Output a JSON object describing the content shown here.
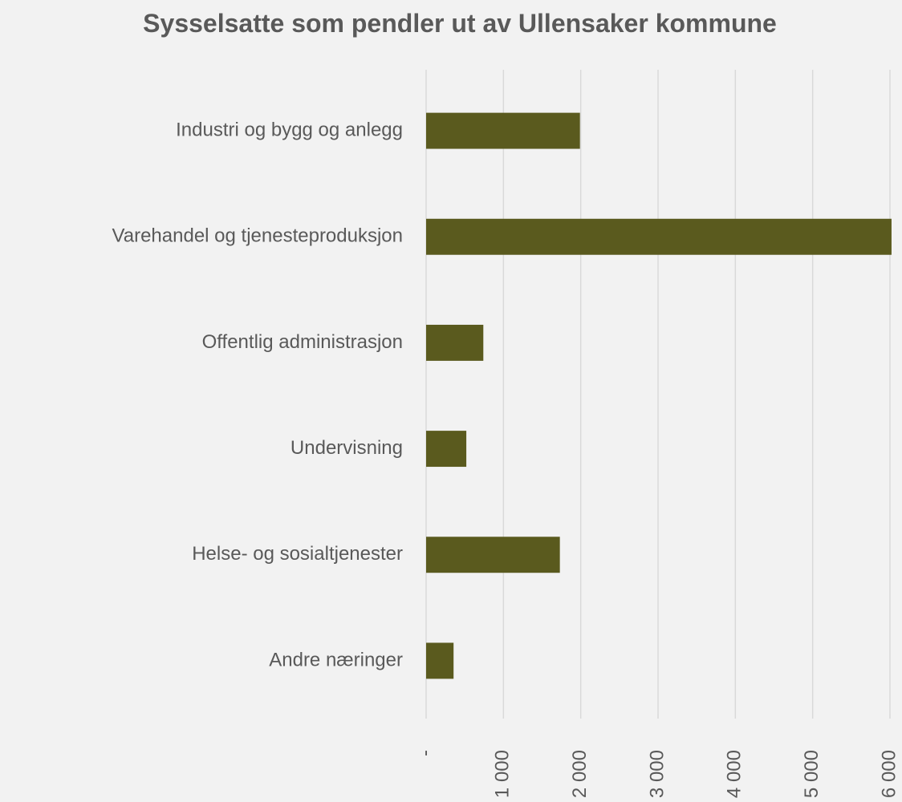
{
  "chart_data": {
    "type": "barh",
    "title": "Sysselsatte som pendler ut av Ullensaker kommune",
    "categories": [
      "Industri og bygg og anlegg",
      "Varehandel og tjenesteproduksjon",
      "Offentlig administrasjon",
      "Undervisning",
      "Helse- og sosialtjenester",
      "Andre næringer"
    ],
    "values": [
      1990,
      6020,
      740,
      520,
      1730,
      355
    ],
    "color": "#5a5a1e",
    "xlim": [
      0,
      6000
    ],
    "xticks": [
      {
        "value": 0,
        "label": "-"
      },
      {
        "value": 1000,
        "label": "1 000"
      },
      {
        "value": 2000,
        "label": "2 000"
      },
      {
        "value": 3000,
        "label": "3 000"
      },
      {
        "value": 4000,
        "label": "4 000"
      },
      {
        "value": 5000,
        "label": "5 000"
      },
      {
        "value": 6000,
        "label": "6 000"
      }
    ],
    "grid": true
  }
}
